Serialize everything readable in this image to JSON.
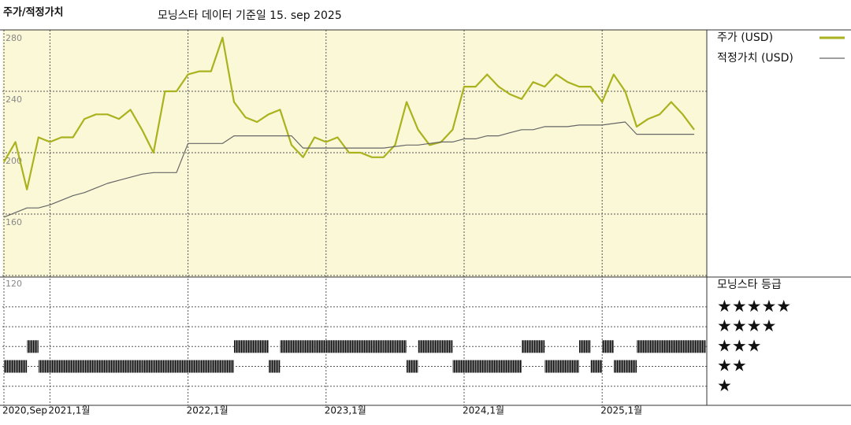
{
  "chart_data": [
    {
      "type": "line",
      "title": "주가/적정가치",
      "subtitle": "모닝스타 데이터 기준일 15. sep 2025",
      "x": [
        "2020-09",
        "2020-10",
        "2020-11",
        "2020-12",
        "2021-01",
        "2021-02",
        "2021-03",
        "2021-04",
        "2021-05",
        "2021-06",
        "2021-07",
        "2021-08",
        "2021-09",
        "2021-10",
        "2021-11",
        "2021-12",
        "2022-01",
        "2022-02",
        "2022-03",
        "2022-04",
        "2022-05",
        "2022-06",
        "2022-07",
        "2022-08",
        "2022-09",
        "2022-10",
        "2022-11",
        "2022-12",
        "2023-01",
        "2023-02",
        "2023-03",
        "2023-04",
        "2023-05",
        "2023-06",
        "2023-07",
        "2023-08",
        "2023-09",
        "2023-10",
        "2023-11",
        "2023-12",
        "2024-01",
        "2024-02",
        "2024-03",
        "2024-04",
        "2024-05",
        "2024-06",
        "2024-07",
        "2024-08",
        "2024-09",
        "2024-10",
        "2024-11",
        "2024-12",
        "2025-01",
        "2025-02",
        "2025-03",
        "2025-04",
        "2025-05",
        "2025-06",
        "2025-07",
        "2025-08",
        "2025-09"
      ],
      "series": [
        {
          "name": "주가 (USD)",
          "color": "#aab21e",
          "values": [
            194,
            207,
            176,
            210,
            207,
            210,
            210,
            222,
            225,
            225,
            222,
            228,
            215,
            200,
            240,
            240,
            251,
            253,
            253,
            275,
            233,
            223,
            220,
            225,
            228,
            205,
            197,
            210,
            207,
            210,
            200,
            200,
            197,
            197,
            205,
            233,
            215,
            205,
            207,
            215,
            243,
            243,
            251,
            243,
            238,
            235,
            246,
            243,
            251,
            246,
            243,
            243,
            233,
            251,
            240,
            217,
            222,
            225,
            233,
            225,
            215
          ]
        },
        {
          "name": "적정가치 (USD)",
          "color": "#666666",
          "values": [
            158,
            161,
            164,
            164,
            166,
            169,
            172,
            174,
            177,
            180,
            182,
            184,
            186,
            187,
            187,
            187,
            206,
            206,
            206,
            206,
            211,
            211,
            211,
            211,
            211,
            211,
            203,
            203,
            203,
            203,
            203,
            203,
            203,
            203,
            204,
            205,
            205,
            206,
            207,
            207,
            209,
            209,
            211,
            211,
            213,
            215,
            215,
            217,
            217,
            217,
            218,
            218,
            218,
            219,
            220,
            212,
            212,
            212,
            212,
            212,
            212
          ]
        }
      ],
      "xlim": [
        "2020-09",
        "2025-09"
      ],
      "xticks": [
        {
          "value": "2020-09",
          "label": "2020,Sep"
        },
        {
          "value": "2021-01",
          "label": "2021,1월"
        },
        {
          "value": "2022-01",
          "label": "2022,1월"
        },
        {
          "value": "2023-01",
          "label": "2023,1월"
        },
        {
          "value": "2024-01",
          "label": "2024,1월"
        },
        {
          "value": "2025-01",
          "label": "2025,1월"
        }
      ],
      "ylim": [
        120,
        280
      ],
      "yticks": [
        120,
        160,
        200,
        240,
        280
      ],
      "grid": true,
      "legend": "right"
    },
    {
      "type": "rating",
      "title": "모닝스타 등급",
      "x": [
        "2020-09",
        "2020-10",
        "2020-11",
        "2020-12",
        "2021-01",
        "2021-02",
        "2021-03",
        "2021-04",
        "2021-05",
        "2021-06",
        "2021-07",
        "2021-08",
        "2021-09",
        "2021-10",
        "2021-11",
        "2021-12",
        "2022-01",
        "2022-02",
        "2022-03",
        "2022-04",
        "2022-05",
        "2022-06",
        "2022-07",
        "2022-08",
        "2022-09",
        "2022-10",
        "2022-11",
        "2022-12",
        "2023-01",
        "2023-02",
        "2023-03",
        "2023-04",
        "2023-05",
        "2023-06",
        "2023-07",
        "2023-08",
        "2023-09",
        "2023-10",
        "2023-11",
        "2023-12",
        "2024-01",
        "2024-02",
        "2024-03",
        "2024-04",
        "2024-05",
        "2024-06",
        "2024-07",
        "2024-08",
        "2024-09",
        "2024-10",
        "2024-11",
        "2024-12",
        "2025-01",
        "2025-02",
        "2025-03",
        "2025-04",
        "2025-05",
        "2025-06",
        "2025-07",
        "2025-08",
        "2025-09"
      ],
      "values": [
        2,
        2,
        3,
        2,
        2,
        2,
        2,
        2,
        2,
        2,
        2,
        2,
        2,
        2,
        2,
        2,
        2,
        2,
        2,
        2,
        3,
        3,
        3,
        2,
        3,
        3,
        3,
        3,
        3,
        3,
        3,
        3,
        3,
        3,
        3,
        2,
        3,
        3,
        3,
        2,
        2,
        2,
        2,
        2,
        2,
        3,
        3,
        2,
        2,
        2,
        3,
        2,
        3,
        2,
        2,
        3,
        3,
        3,
        3,
        3,
        3
      ],
      "color": "#222222",
      "ylim": [
        0,
        6.5
      ],
      "yticks": [
        {
          "value": 5,
          "label": "★★★★★"
        },
        {
          "value": 4,
          "label": "★★★★"
        },
        {
          "value": 3,
          "label": "★★★"
        },
        {
          "value": 2,
          "label": "★★"
        },
        {
          "value": 1,
          "label": "★"
        }
      ]
    }
  ]
}
